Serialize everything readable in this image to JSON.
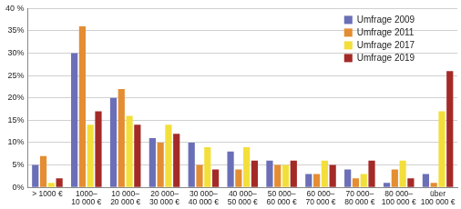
{
  "chart_data": {
    "type": "bar",
    "categories": [
      [
        "> 1000 €"
      ],
      [
        "1000–",
        "10 000 €"
      ],
      [
        "10 000–",
        "20 000 €"
      ],
      [
        "20 000–",
        "30 000 €"
      ],
      [
        "30 000–",
        "40 000 €"
      ],
      [
        "40 000–",
        "50 000 €"
      ],
      [
        "50 000–",
        "60 000 €"
      ],
      [
        "60 000–",
        "70 000 €"
      ],
      [
        "70 000–",
        "80 000 €"
      ],
      [
        "80 000–",
        "100 000 €"
      ],
      [
        "über",
        "100 000 €"
      ]
    ],
    "series": [
      {
        "name": "Umfrage 2009",
        "color": "#6a6fb7",
        "values": [
          5,
          30,
          20,
          11,
          10,
          8,
          6,
          3,
          4,
          1,
          3
        ]
      },
      {
        "name": "Umfrage 2011",
        "color": "#e48d32",
        "values": [
          7,
          36,
          22,
          10,
          5,
          4,
          5,
          3,
          2,
          4,
          1
        ]
      },
      {
        "name": "Umfrage 2017",
        "color": "#f3df3b",
        "values": [
          1,
          14,
          16,
          14,
          9,
          9,
          5,
          6,
          3,
          6,
          17
        ]
      },
      {
        "name": "Umfrage 2019",
        "color": "#a42a27",
        "values": [
          2,
          17,
          14,
          12,
          4,
          6,
          6,
          5,
          6,
          2,
          26
        ]
      }
    ],
    "ylim": [
      0,
      40
    ],
    "yticks": [
      {
        "value": 0,
        "label": "0%"
      },
      {
        "value": 5,
        "label": "5%"
      },
      {
        "value": 10,
        "label": "10%"
      },
      {
        "value": 15,
        "label": "15%"
      },
      {
        "value": 20,
        "label": "20%"
      },
      {
        "value": 25,
        "label": "25%"
      },
      {
        "value": 30,
        "label": "30%"
      },
      {
        "value": 35,
        "label": "35%"
      },
      {
        "value": 40,
        "label": "40 %"
      }
    ],
    "grid": true,
    "legend": "upper right"
  }
}
